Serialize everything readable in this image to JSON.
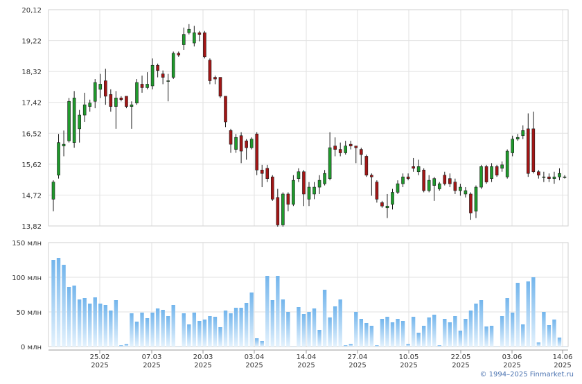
{
  "chart_data": [
    {
      "type": "candlestick",
      "title": "",
      "y_ticks": [
        "20,12",
        "19,22",
        "18,32",
        "17,42",
        "16,52",
        "15,62",
        "14,72",
        "13,82"
      ],
      "ylim": [
        13.82,
        20.12
      ],
      "grid": true,
      "x_ticks": [
        {
          "day": "25.02",
          "year": "2025"
        },
        {
          "day": "07.03",
          "year": "2025"
        },
        {
          "day": "20.03",
          "year": "2025"
        },
        {
          "day": "03.04",
          "year": "2025"
        },
        {
          "day": "14.04",
          "year": "2025"
        },
        {
          "day": "27.04",
          "year": "2025"
        },
        {
          "day": "10.05",
          "year": "2025"
        },
        {
          "day": "22.05",
          "year": "2025"
        },
        {
          "day": "03.06",
          "year": "2025"
        },
        {
          "day": "14.06",
          "year": "2025"
        }
      ],
      "ohlc": [
        [
          14.6,
          15.1,
          14.25,
          15.15
        ],
        [
          15.3,
          16.25,
          15.2,
          16.5
        ],
        [
          16.15,
          16.2,
          15.85,
          16.6
        ],
        [
          16.3,
          17.45,
          16.25,
          17.55
        ],
        [
          16.25,
          17.55,
          16.1,
          17.75
        ],
        [
          16.65,
          17.05,
          16.25,
          17.2
        ],
        [
          17.05,
          17.35,
          16.85,
          17.7
        ],
        [
          17.3,
          17.4,
          17.15,
          17.5
        ],
        [
          17.45,
          18.0,
          17.25,
          18.1
        ],
        [
          17.8,
          17.95,
          17.55,
          18.25
        ],
        [
          18.05,
          17.6,
          17.35,
          18.4
        ],
        [
          17.65,
          17.3,
          17.15,
          17.8
        ],
        [
          17.3,
          17.55,
          16.65,
          17.75
        ],
        [
          17.55,
          17.5,
          17.45,
          17.6
        ],
        [
          17.6,
          17.3,
          17.25,
          17.6
        ],
        [
          17.3,
          17.35,
          16.65,
          17.45
        ],
        [
          17.4,
          18.0,
          17.35,
          18.1
        ],
        [
          17.95,
          17.85,
          17.7,
          18.2
        ],
        [
          17.85,
          17.95,
          17.8,
          18.3
        ],
        [
          17.9,
          18.5,
          17.8,
          18.7
        ],
        [
          18.5,
          18.35,
          18.15,
          18.55
        ],
        [
          18.25,
          18.15,
          17.95,
          18.35
        ],
        [
          18.05,
          18.05,
          17.45,
          18.25
        ],
        [
          18.15,
          18.85,
          18.1,
          18.9
        ],
        [
          18.85,
          18.8,
          18.75,
          18.9
        ],
        [
          19.1,
          19.4,
          18.95,
          19.6
        ],
        [
          19.45,
          19.55,
          19.4,
          19.7
        ],
        [
          19.15,
          19.45,
          19.05,
          19.65
        ],
        [
          19.45,
          19.4,
          19.2,
          19.5
        ],
        [
          19.45,
          18.75,
          18.7,
          19.5
        ],
        [
          18.65,
          18.05,
          17.95,
          18.7
        ],
        [
          18.15,
          18.1,
          17.95,
          18.2
        ],
        [
          18.15,
          17.6,
          17.55,
          18.15
        ],
        [
          17.6,
          16.85,
          16.7,
          17.6
        ],
        [
          16.6,
          16.2,
          15.95,
          16.65
        ],
        [
          16.05,
          16.4,
          15.95,
          16.5
        ],
        [
          16.45,
          16.0,
          15.65,
          16.55
        ],
        [
          16.3,
          16.1,
          15.75,
          16.35
        ],
        [
          16.1,
          16.35,
          16.05,
          16.4
        ],
        [
          16.5,
          15.45,
          15.3,
          16.55
        ],
        [
          15.45,
          15.35,
          14.95,
          15.6
        ],
        [
          15.5,
          15.2,
          15.1,
          15.6
        ],
        [
          15.25,
          14.6,
          14.55,
          15.3
        ],
        [
          14.65,
          13.85,
          13.8,
          14.9
        ],
        [
          13.85,
          14.75,
          13.8,
          14.8
        ],
        [
          14.75,
          14.45,
          14.25,
          14.8
        ],
        [
          14.45,
          15.15,
          14.4,
          15.3
        ],
        [
          15.2,
          15.4,
          15.1,
          15.5
        ],
        [
          15.4,
          14.75,
          14.4,
          15.45
        ],
        [
          14.6,
          14.95,
          14.4,
          15.1
        ],
        [
          14.75,
          14.95,
          14.6,
          15.1
        ],
        [
          14.95,
          15.15,
          14.75,
          15.3
        ],
        [
          15.05,
          15.35,
          15.0,
          15.45
        ],
        [
          15.2,
          16.1,
          15.15,
          16.55
        ],
        [
          16.15,
          16.05,
          15.85,
          16.4
        ],
        [
          16.05,
          15.95,
          15.85,
          16.25
        ],
        [
          15.95,
          16.15,
          15.9,
          16.3
        ],
        [
          16.2,
          16.15,
          16.05,
          16.3
        ],
        [
          16.15,
          16.1,
          15.65,
          16.15
        ],
        [
          16.05,
          15.9,
          15.6,
          16.1
        ],
        [
          15.85,
          15.3,
          15.25,
          15.9
        ],
        [
          15.3,
          15.25,
          14.7,
          15.35
        ],
        [
          15.1,
          14.6,
          14.5,
          15.15
        ],
        [
          14.5,
          14.4,
          14.35,
          14.55
        ],
        [
          14.35,
          14.4,
          14.05,
          14.75
        ],
        [
          14.45,
          14.8,
          14.3,
          14.9
        ],
        [
          14.8,
          15.05,
          14.75,
          15.15
        ],
        [
          15.05,
          15.25,
          14.95,
          15.35
        ],
        [
          15.25,
          15.2,
          15.15,
          15.35
        ],
        [
          15.55,
          15.5,
          15.4,
          15.8
        ],
        [
          15.4,
          15.55,
          15.3,
          15.75
        ],
        [
          15.45,
          14.85,
          14.8,
          15.5
        ],
        [
          14.85,
          15.15,
          14.8,
          15.3
        ],
        [
          15.0,
          15.2,
          14.55,
          15.25
        ],
        [
          14.9,
          15.05,
          14.85,
          15.1
        ],
        [
          15.3,
          15.05,
          15.0,
          15.4
        ],
        [
          15.2,
          15.05,
          14.95,
          15.35
        ],
        [
          15.1,
          14.85,
          14.75,
          15.2
        ],
        [
          14.85,
          14.95,
          14.7,
          15.05
        ],
        [
          14.75,
          14.85,
          14.65,
          14.95
        ],
        [
          14.75,
          14.2,
          14.0,
          14.8
        ],
        [
          14.25,
          14.95,
          14.05,
          15.0
        ],
        [
          14.95,
          15.55,
          14.9,
          15.6
        ],
        [
          15.55,
          15.1,
          15.05,
          15.6
        ],
        [
          15.2,
          15.55,
          15.1,
          15.65
        ],
        [
          15.55,
          15.3,
          15.25,
          15.6
        ],
        [
          15.5,
          15.6,
          15.4,
          15.7
        ],
        [
          15.25,
          16.0,
          15.2,
          16.05
        ],
        [
          15.95,
          16.35,
          15.85,
          16.45
        ],
        [
          16.35,
          16.4,
          16.3,
          16.5
        ],
        [
          16.45,
          16.6,
          16.35,
          16.75
        ],
        [
          16.65,
          15.35,
          15.25,
          17.1
        ],
        [
          16.65,
          15.4,
          15.35,
          17.15
        ],
        [
          15.4,
          15.3,
          15.2,
          15.45
        ],
        [
          15.25,
          15.25,
          15.1,
          15.4
        ],
        [
          15.25,
          15.2,
          15.1,
          15.35
        ],
        [
          15.2,
          15.25,
          15.05,
          15.4
        ],
        [
          15.25,
          15.35,
          15.15,
          15.5
        ],
        [
          15.25,
          15.25,
          15.2,
          15.3
        ]
      ]
    },
    {
      "type": "bar",
      "title": "",
      "y_ticks": [
        "150 млн",
        "100 млн",
        "50 млн",
        "0 млн"
      ],
      "ylim": [
        0,
        150
      ],
      "grid": true,
      "values": [
        125,
        128,
        118,
        86,
        88,
        68,
        70,
        62,
        71,
        62,
        60,
        52,
        67,
        2,
        4,
        48,
        36,
        49,
        41,
        49,
        55,
        53,
        44,
        60,
        0,
        48,
        32,
        49,
        37,
        39,
        44,
        43,
        28,
        52,
        48,
        56,
        56,
        63,
        78,
        12,
        8,
        102,
        67,
        102,
        68,
        50,
        0,
        57,
        47,
        50,
        55,
        24,
        82,
        42,
        58,
        68,
        2,
        4,
        50,
        40,
        34,
        30,
        2,
        40,
        43,
        35,
        40,
        37,
        4,
        43,
        20,
        30,
        42,
        46,
        2,
        40,
        35,
        44,
        23,
        40,
        52,
        62,
        67,
        29,
        30,
        0,
        44,
        70,
        49,
        92,
        32,
        94,
        100,
        6,
        50,
        31,
        39,
        13,
        0
      ]
    }
  ],
  "copyright": "© 1994–2025 Finmarket.ru"
}
